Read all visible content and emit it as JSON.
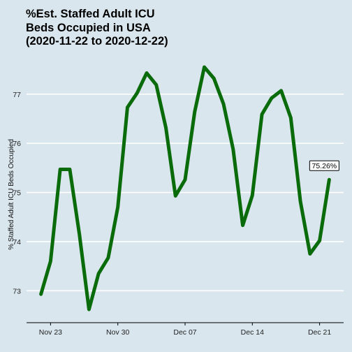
{
  "chart_data": {
    "type": "line",
    "title_lines": [
      "%Est. Staffed Adult ICU",
      "Beds Occupied in USA",
      "(2020-11-22 to 2020-12-22)"
    ],
    "ylabel": "% Staffed Adult ICU Beds Occupied",
    "xlabel": "",
    "x_ticks": [
      {
        "label": "Nov 23",
        "day": 1
      },
      {
        "label": "Nov 30",
        "day": 8
      },
      {
        "label": "Dec 07",
        "day": 15
      },
      {
        "label": "Dec 14",
        "day": 22
      },
      {
        "label": "Dec 21",
        "day": 29
      }
    ],
    "y_ticks": [
      73,
      74,
      75,
      76,
      77
    ],
    "ylim": [
      72.35,
      77.85
    ],
    "xlim": [
      -1.5,
      31.5
    ],
    "grid": "horizontal",
    "line_color": "#0a6b0a",
    "series": [
      {
        "x": [
          "2020-11-22",
          "2020-11-23",
          "2020-11-24",
          "2020-11-25",
          "2020-11-26",
          "2020-11-27",
          "2020-11-28",
          "2020-11-29",
          "2020-11-30",
          "2020-12-01",
          "2020-12-02",
          "2020-12-03",
          "2020-12-04",
          "2020-12-05",
          "2020-12-06",
          "2020-12-07",
          "2020-12-08",
          "2020-12-09",
          "2020-12-10",
          "2020-12-11",
          "2020-12-12",
          "2020-12-13",
          "2020-12-14",
          "2020-12-15",
          "2020-12-16",
          "2020-12-17",
          "2020-12-18",
          "2020-12-19",
          "2020-12-20",
          "2020-12-21",
          "2020-12-22"
        ],
        "values": [
          72.93,
          73.6,
          75.47,
          75.47,
          74.15,
          72.62,
          73.35,
          73.67,
          74.7,
          76.73,
          77.02,
          77.43,
          77.19,
          76.32,
          74.93,
          75.26,
          76.64,
          77.55,
          77.32,
          76.8,
          75.88,
          74.33,
          74.94,
          76.59,
          76.92,
          77.07,
          76.52,
          74.82,
          73.75,
          74.02,
          75.26
        ]
      }
    ],
    "annotation": {
      "text": "75.26%",
      "x": "2020-12-22",
      "y": 75.26
    }
  }
}
